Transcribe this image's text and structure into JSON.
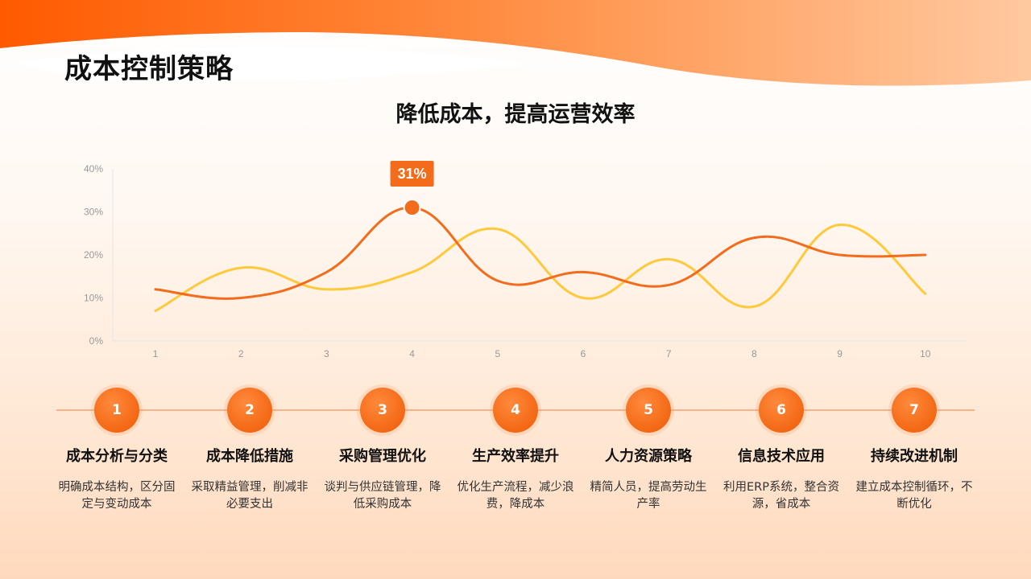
{
  "page": {
    "title": "成本控制策略"
  },
  "chart_data": {
    "type": "line",
    "title": "降低成本，提高运营效率",
    "x": [
      1,
      2,
      3,
      4,
      5,
      6,
      7,
      8,
      9,
      10
    ],
    "y_ticks": [
      "0%",
      "10%",
      "20%",
      "30%",
      "40%"
    ],
    "ylim": [
      0,
      40
    ],
    "series": [
      {
        "color": "#f26c1c",
        "values": [
          12,
          10,
          16,
          31,
          14,
          16,
          13,
          24,
          20,
          20
        ]
      },
      {
        "color": "#ffc93c",
        "values": [
          7,
          17,
          12,
          16,
          26,
          10,
          19,
          8,
          27,
          11
        ]
      }
    ],
    "highlight": {
      "series": 0,
      "index": 3,
      "label": "31%"
    },
    "smooth": true,
    "grid": false
  },
  "timeline": {
    "steps": [
      {
        "number": "1",
        "title": "成本分析与分类",
        "desc": "明确成本结构，区分固定与变动成本"
      },
      {
        "number": "2",
        "title": "成本降低措施",
        "desc": "采取精益管理，削减非必要支出"
      },
      {
        "number": "3",
        "title": "采购管理优化",
        "desc": "谈判与供应链管理，降低采购成本"
      },
      {
        "number": "4",
        "title": "生产效率提升",
        "desc": "优化生产流程，减少浪费，降成本"
      },
      {
        "number": "5",
        "title": "人力资源策略",
        "desc": "精简人员，提高劳动生产率"
      },
      {
        "number": "6",
        "title": "信息技术应用",
        "desc": "利用ERP系统，整合资源，省成本"
      },
      {
        "number": "7",
        "title": "持续改进机制",
        "desc": "建立成本控制循环，不断优化"
      }
    ]
  }
}
